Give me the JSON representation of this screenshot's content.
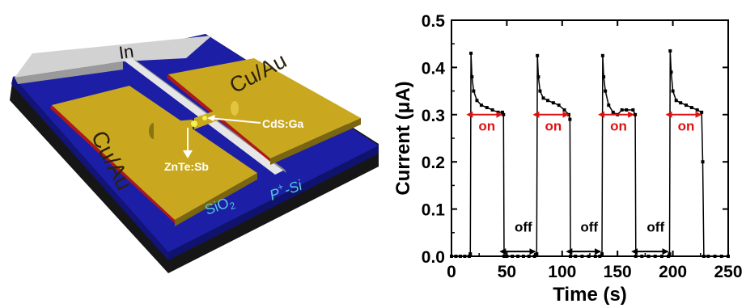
{
  "device": {
    "labels": {
      "in": "In",
      "cu_au_left": "Cu/Au",
      "cu_au_right": "Cu/Au",
      "cds_ga": "CdS:Ga",
      "znte_sb": "ZnTe:Sb",
      "sio2": "SiO",
      "sio2_sub": "2",
      "p_si": "P",
      "p_si_sup": "+",
      "p_si_tail": "-Si"
    },
    "colors": {
      "substrate": "#1c1fa6",
      "gold": "#c9a820",
      "indium": "#cfcfcf",
      "base": "#161616",
      "red_edge": "#b01818"
    }
  },
  "chart_data": {
    "type": "line",
    "xlabel": "Time (s)",
    "ylabel": "Current (μA)",
    "xlim": [
      0,
      250
    ],
    "ylim": [
      0,
      0.5
    ],
    "xticks": [
      0,
      50,
      100,
      150,
      200,
      250
    ],
    "xtick_labels": [
      "0",
      "50",
      "100",
      "150",
      "200",
      "250"
    ],
    "yticks": [
      0.0,
      0.1,
      0.2,
      0.3,
      0.4,
      0.5
    ],
    "ytick_labels": [
      "0.0",
      "0.1",
      "0.2",
      "0.3",
      "0.4",
      "0.5"
    ],
    "grid": false,
    "series": [
      {
        "color": "#000000",
        "points": [
          [
            0,
            0.0
          ],
          [
            4,
            0.0
          ],
          [
            8,
            0.0
          ],
          [
            12,
            0.0
          ],
          [
            16,
            0.0
          ],
          [
            17,
            0.005
          ],
          [
            17.6,
            0.43
          ],
          [
            18.5,
            0.38
          ],
          [
            20,
            0.35
          ],
          [
            23,
            0.33
          ],
          [
            27,
            0.32
          ],
          [
            32,
            0.315
          ],
          [
            37,
            0.31
          ],
          [
            42,
            0.305
          ],
          [
            46,
            0.305
          ],
          [
            47,
            0.3
          ],
          [
            47.5,
            0.0
          ],
          [
            50,
            0.0
          ],
          [
            55,
            0.0
          ],
          [
            60,
            0.0
          ],
          [
            65,
            0.0
          ],
          [
            70,
            0.0
          ],
          [
            75,
            0.0
          ],
          [
            77,
            0.005
          ],
          [
            77.6,
            0.425
          ],
          [
            78.5,
            0.38
          ],
          [
            80,
            0.35
          ],
          [
            83,
            0.335
          ],
          [
            87,
            0.33
          ],
          [
            92,
            0.325
          ],
          [
            97,
            0.32
          ],
          [
            102,
            0.31
          ],
          [
            106,
            0.3
          ],
          [
            107,
            0.29
          ],
          [
            107.5,
            0.0
          ],
          [
            112,
            0.0
          ],
          [
            118,
            0.0
          ],
          [
            124,
            0.0
          ],
          [
            130,
            0.0
          ],
          [
            134,
            0.0
          ],
          [
            136,
            0.005
          ],
          [
            136.6,
            0.425
          ],
          [
            137.5,
            0.38
          ],
          [
            139,
            0.35
          ],
          [
            142,
            0.32
          ],
          [
            146,
            0.305
          ],
          [
            150,
            0.3
          ],
          [
            154,
            0.31
          ],
          [
            158,
            0.31
          ],
          [
            164,
            0.31
          ],
          [
            166,
            0.3
          ],
          [
            166.5,
            0.0
          ],
          [
            172,
            0.0
          ],
          [
            178,
            0.0
          ],
          [
            184,
            0.0
          ],
          [
            190,
            0.0
          ],
          [
            196,
            0.0
          ],
          [
            197,
            0.005
          ],
          [
            197.6,
            0.435
          ],
          [
            198.5,
            0.39
          ],
          [
            200,
            0.35
          ],
          [
            203,
            0.33
          ],
          [
            207,
            0.325
          ],
          [
            212,
            0.32
          ],
          [
            217,
            0.315
          ],
          [
            222,
            0.31
          ],
          [
            226,
            0.305
          ],
          [
            227,
            0.2
          ],
          [
            228,
            0.0
          ],
          [
            232,
            0.0
          ],
          [
            238,
            0.0
          ],
          [
            244,
            0.0
          ],
          [
            250,
            0.0
          ]
        ]
      }
    ],
    "annotations": {
      "color_on": "#dd1111",
      "color_off": "#000000",
      "on": [
        {
          "text": "on",
          "x1": 17,
          "x2": 47,
          "y": 0.3,
          "label_y": 0.27
        },
        {
          "text": "on",
          "x1": 77,
          "x2": 107,
          "y": 0.3,
          "label_y": 0.27
        },
        {
          "text": "on",
          "x1": 136,
          "x2": 166,
          "y": 0.3,
          "label_y": 0.27
        },
        {
          "text": "on",
          "x1": 197,
          "x2": 227,
          "y": 0.3,
          "label_y": 0.27
        }
      ],
      "off": [
        {
          "text": "off",
          "x1": 47,
          "x2": 77,
          "y": 0.01,
          "label_y": 0.045
        },
        {
          "text": "off",
          "x1": 107,
          "x2": 136,
          "y": 0.01,
          "label_y": 0.045
        },
        {
          "text": "off",
          "x1": 166,
          "x2": 197,
          "y": 0.01,
          "label_y": 0.045
        }
      ]
    }
  }
}
